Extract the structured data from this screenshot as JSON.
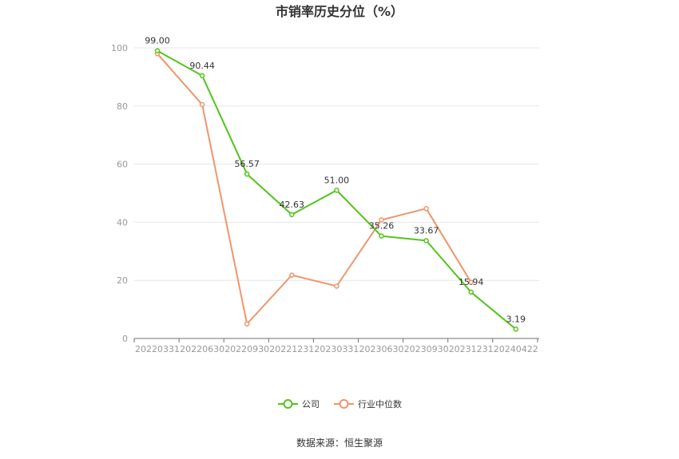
{
  "chart_data": {
    "type": "line",
    "title": "市销率历史分位（%）",
    "categories": [
      "20220331",
      "20220630",
      "20220930",
      "20221231",
      "20230331",
      "20230630",
      "20230930",
      "20231231",
      "20240422"
    ],
    "ylim": [
      0,
      100
    ],
    "yticks": [
      "0",
      "20",
      "40",
      "60",
      "80",
      "100"
    ],
    "grid": true,
    "legend_position": "bottom",
    "series": [
      {
        "name": "公司",
        "color": "#52c41a",
        "values": [
          99.0,
          90.44,
          56.57,
          42.63,
          51.0,
          35.26,
          33.67,
          15.94,
          3.19
        ],
        "labels": [
          "99.00",
          "90.44",
          "56.57",
          "42.63",
          "51.00",
          "35.26",
          "33.67",
          "15.94",
          "3.19"
        ]
      },
      {
        "name": "行业中位数",
        "color": "#f0956a",
        "values": [
          98.0,
          80.5,
          5.0,
          21.8,
          18.0,
          40.8,
          44.7,
          19.3,
          null
        ]
      }
    ],
    "source": "数据来源：恒生聚源"
  }
}
